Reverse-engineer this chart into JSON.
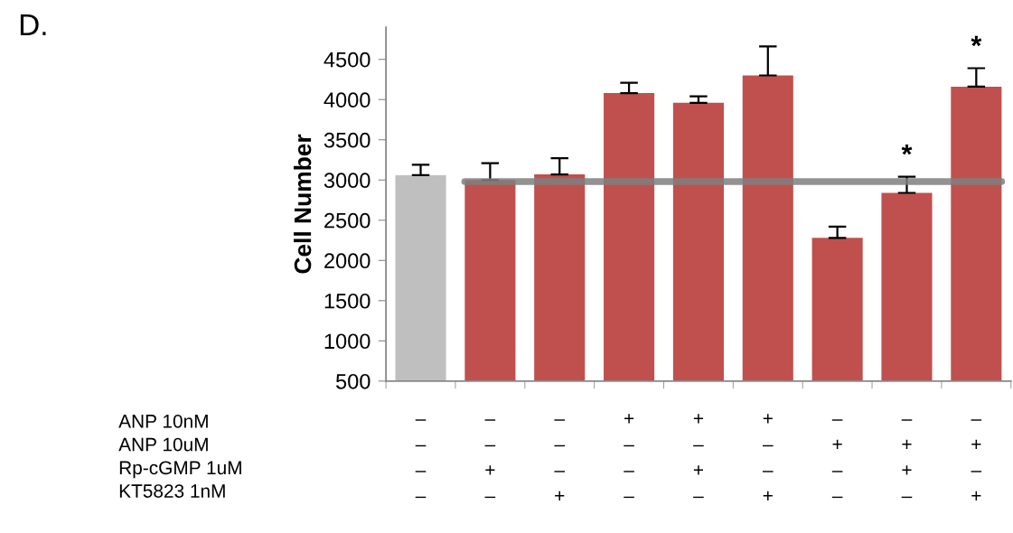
{
  "chart_data": {
    "type": "bar",
    "title": "D.",
    "ylabel": "Cell Number",
    "categories": [
      "–\n–\n–\n–",
      "–\n–\n+\n–",
      "–\n–\n–\n+",
      "+\n–\n–\n–",
      "+\n–\n+\n–",
      "+\n–\n–\n+",
      "–\n+\n–\n–",
      "–\n+\n+\n–",
      "–\n+\n–\n+"
    ],
    "values": [
      3060,
      3000,
      3070,
      4080,
      3960,
      4300,
      2280,
      2840,
      4160
    ],
    "colors": [
      "#bfbfbf",
      "#c0504d",
      "#c0504d",
      "#c0504d",
      "#c0504d",
      "#c0504d",
      "#c0504d",
      "#c0504d",
      "#c0504d"
    ],
    "errors": [
      [
        3060,
        3190
      ],
      [
        3000,
        3210
      ],
      [
        3070,
        3270
      ],
      [
        4080,
        4210
      ],
      [
        3960,
        4040
      ],
      [
        4300,
        4660
      ],
      [
        2280,
        2420
      ],
      [
        2840,
        3040
      ],
      [
        4160,
        4390
      ]
    ],
    "ylim": [
      500,
      4900
    ],
    "yticks": [
      500,
      1000,
      1500,
      2000,
      2500,
      3000,
      3500,
      4000,
      4500
    ],
    "ref_lines": [
      {
        "axis": "y",
        "value": 2980,
        "color": "#7f7f7f"
      }
    ],
    "value_labels": [
      null,
      null,
      null,
      null,
      null,
      null,
      null,
      "*",
      "*"
    ],
    "annotations": [
      "ANP 10nM",
      "ANP 10uM",
      "Rp-cGMP 1uM",
      "KT5823 1nM"
    ],
    "grid": false,
    "legend": false
  }
}
